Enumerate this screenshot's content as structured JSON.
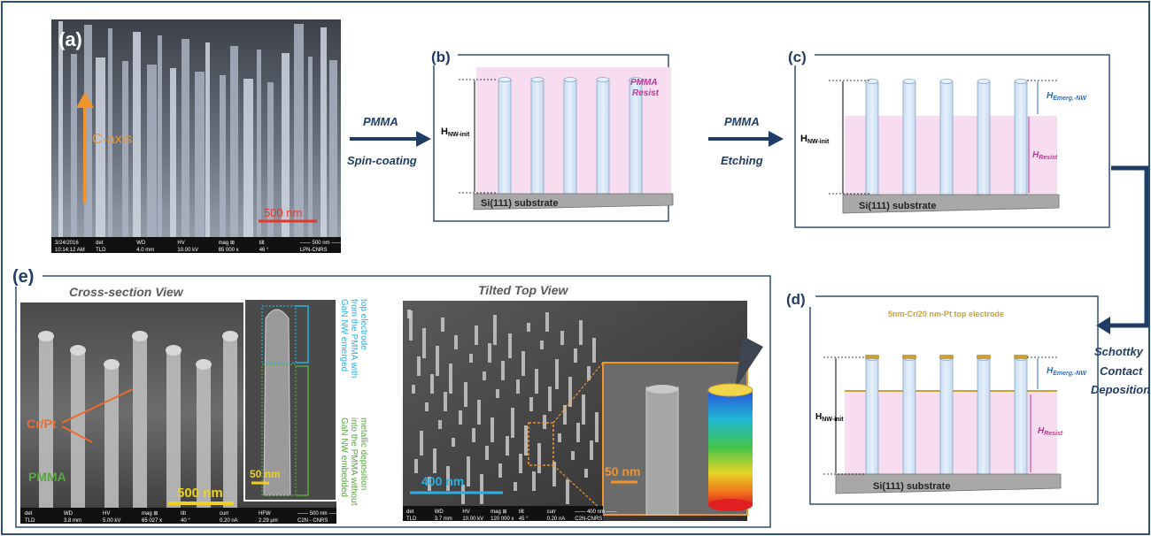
{
  "panels": {
    "a": {
      "letter": "(a)",
      "axis_label": "C-axis",
      "scale": "500 nm",
      "info_header": [
        "3/24/2016",
        "det",
        "WD",
        "HV",
        "mag ⊞",
        "tilt",
        "—— 500 nm ——"
      ],
      "info_values": [
        "10:14:12 AM",
        "TLD",
        "4.0 mm",
        "10.00 kV",
        "65 000 x",
        "46 °",
        "LPN-CNRS"
      ]
    },
    "b": {
      "letter": "(b)",
      "height_label_main": "H",
      "height_label_sub": "NW-init",
      "resist_label_1": "PMMA",
      "resist_label_2": "Resist",
      "substrate": "Si(111) substrate"
    },
    "c": {
      "letter": "(c)",
      "height_init_main": "H",
      "height_init_sub": "NW-init",
      "emerg_main": "H",
      "emerg_sub": "Emerg.-NW",
      "resist_main": "H",
      "resist_sub": "Resist",
      "substrate": "Si(111) substrate"
    },
    "d": {
      "letter": "(d)",
      "electrode_label": "5nm-Cr/20 nm-Pt top electrode",
      "height_init_main": "H",
      "height_init_sub": "NW-init",
      "emerg_main": "H",
      "emerg_sub": "Emerg.-NW",
      "resist_main": "H",
      "resist_sub": "Resist",
      "substrate": "Si(111) substrate"
    },
    "e": {
      "letter": "(e)",
      "cross_title": "Cross-section View",
      "tilted_title": "Tilted Top View",
      "crpt_label": "Cr/Pt",
      "pmma_label": "PMMA",
      "scale_cross": "500 nm",
      "scale_inset": "50 nm",
      "scale_tilted": "400 nm",
      "scale_zoom": "50 nm",
      "emerged_lines": [
        "GaN NW emerged",
        "from the PMMA with",
        "top electrode"
      ],
      "embedded_lines": [
        "GaN NW embedded",
        "into the PMMA without",
        "metallic deposition"
      ],
      "info_cross_header": [
        "det",
        "WD",
        "HV",
        "mag ⊞",
        "tilt",
        "curr",
        "HFW",
        "—— 500 nm ——"
      ],
      "info_cross_values": [
        "TLD",
        "3.8 mm",
        "5.00 kV",
        "65 027 x",
        "40 °",
        "0.20 nA",
        "2.29 µm",
        "C2N - CNRS"
      ],
      "info_tilted_header": [
        "det",
        "WD",
        "HV",
        "mag ⊞",
        "tilt",
        "curr",
        "—— 400 nm ——"
      ],
      "info_tilted_values": [
        "TLD",
        "3.7 mm",
        "10.00 kV",
        "120 000 x",
        "45 °",
        "0.20 nA",
        "C2N-CNRS"
      ]
    }
  },
  "arrows": {
    "spin_line1": "PMMA",
    "spin_line2": "Spin-coating",
    "etch_line1": "PMMA",
    "etch_line2": "Etching",
    "schottky_line1": "Schottky",
    "schottky_line2": "Contact",
    "schottky_line3": "Deposition"
  },
  "colors": {
    "frame_blue": "#2f4f74",
    "arrow_navy": "#1f3d66",
    "pmma_pink": "#f8dcef",
    "resist_magenta": "#c0379a",
    "emerg_blue": "#2b6cc4",
    "gold": "#c9a13a",
    "orange_label": "#f06a2a",
    "green_label": "#58a640",
    "cyan_label": "#2bb0e0"
  }
}
